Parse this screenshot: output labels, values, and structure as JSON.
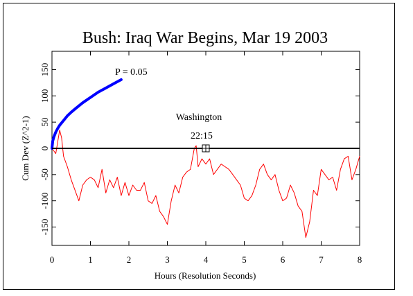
{
  "chart_data": {
    "type": "line",
    "title": "Bush: Iraq War Begins, Mar 19 2003",
    "xlabel": "Hours (Resolution Seconds)",
    "ylabel": "Cum Dev (Z^2-1)",
    "xlim": [
      0,
      8
    ],
    "ylim": [
      -185,
      185
    ],
    "xticks": [
      0,
      1,
      2,
      3,
      4,
      5,
      6,
      7,
      8
    ],
    "yticks": [
      -150,
      -100,
      -50,
      0,
      50,
      100,
      150
    ],
    "grid": false,
    "series": [
      {
        "color": "#ff0000",
        "x": [
          0,
          0.1,
          0.2,
          0.25,
          0.3,
          0.4,
          0.5,
          0.7,
          0.8,
          0.9,
          1.0,
          1.1,
          1.2,
          1.3,
          1.4,
          1.5,
          1.6,
          1.7,
          1.8,
          1.9,
          2.0,
          2.1,
          2.2,
          2.3,
          2.4,
          2.5,
          2.6,
          2.7,
          2.8,
          2.9,
          3.0,
          3.1,
          3.2,
          3.3,
          3.4,
          3.5,
          3.6,
          3.7,
          3.75,
          3.8,
          3.9,
          4.0,
          4.1,
          4.2,
          4.3,
          4.4,
          4.5,
          4.6,
          4.7,
          4.8,
          4.9,
          5.0,
          5.1,
          5.2,
          5.3,
          5.4,
          5.5,
          5.6,
          5.7,
          5.8,
          5.9,
          6.0,
          6.1,
          6.2,
          6.3,
          6.4,
          6.5,
          6.6,
          6.7,
          6.8,
          6.9,
          7.0,
          7.1,
          7.2,
          7.3,
          7.4,
          7.5,
          7.6,
          7.7,
          7.8,
          7.9,
          8.0
        ],
        "y": [
          0,
          -10,
          35,
          20,
          -15,
          -35,
          -60,
          -100,
          -70,
          -60,
          -55,
          -60,
          -75,
          -40,
          -85,
          -60,
          -75,
          -55,
          -90,
          -65,
          -90,
          -70,
          -80,
          -80,
          -65,
          -100,
          -105,
          -90,
          -120,
          -130,
          -145,
          -100,
          -70,
          -85,
          -55,
          -45,
          -40,
          0,
          5,
          -35,
          -20,
          -30,
          -20,
          -50,
          -40,
          -30,
          -35,
          -40,
          -50,
          -60,
          -70,
          -95,
          -100,
          -90,
          -70,
          -40,
          -30,
          -50,
          -60,
          -50,
          -80,
          -100,
          -95,
          -70,
          -85,
          -110,
          -120,
          -170,
          -140,
          -80,
          -90,
          -40,
          -50,
          -60,
          -55,
          -80,
          -40,
          -20,
          -15,
          -60,
          -40,
          -15
        ]
      },
      {
        "name": "P = 0.05",
        "color": "#0000ff",
        "x": [
          0,
          0.02,
          0.05,
          0.1,
          0.15,
          0.2,
          0.3,
          0.4,
          0.5,
          0.6,
          0.8,
          1.0,
          1.2,
          1.4,
          1.6,
          1.8
        ],
        "y": [
          0,
          14,
          22,
          31,
          38,
          44,
          53,
          62,
          69,
          75,
          87,
          97,
          107,
          115,
          123,
          131
        ]
      }
    ],
    "annotations": [
      {
        "text": "P = 0.05",
        "color": "#0000ff"
      },
      {
        "text": "Washington",
        "color": "#000000"
      },
      {
        "text": "22:15",
        "color": "#000000"
      }
    ],
    "marker": {
      "x": 4.0,
      "y": 0
    }
  }
}
